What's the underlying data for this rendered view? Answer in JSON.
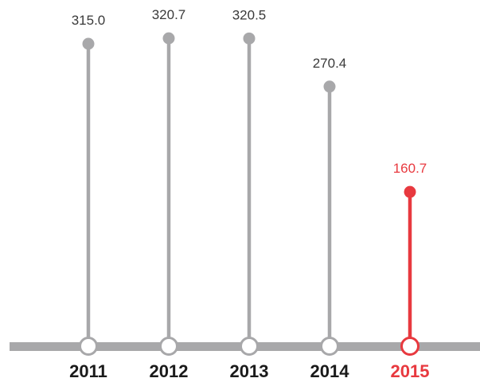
{
  "chart_data": {
    "type": "lollipop",
    "categories": [
      "2011",
      "2012",
      "2013",
      "2014",
      "2015"
    ],
    "values": [
      315.0,
      320.7,
      320.5,
      270.4,
      160.7
    ],
    "value_labels": [
      "315.0",
      "320.7",
      "320.5",
      "270.4",
      "160.7"
    ],
    "highlight_index": 4,
    "title": "",
    "xlabel": "",
    "ylabel": "",
    "ylim": [
      0,
      340
    ],
    "grid": false,
    "legend": "none"
  },
  "colors": {
    "default": "#a8a8aa",
    "highlight": "#e8393f",
    "axis": "#a8a8aa",
    "year_text": "#1a1a1a",
    "value_text": "#3a3a3a"
  }
}
